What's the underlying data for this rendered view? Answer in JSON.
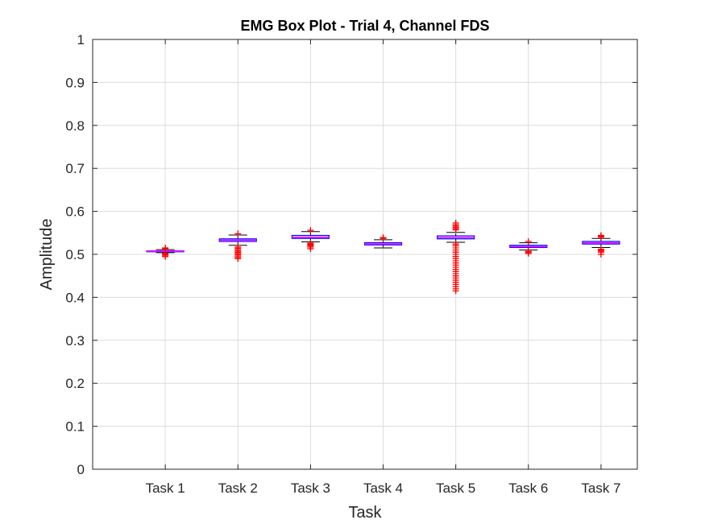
{
  "chart_data": {
    "type": "box",
    "title": "EMG Box Plot - Trial 4, Channel FDS",
    "xlabel": "Task",
    "ylabel": "Amplitude",
    "ylim": [
      0,
      1
    ],
    "yticks": [
      "0",
      "0.1",
      "0.2",
      "0.3",
      "0.4",
      "0.5",
      "0.6",
      "0.7",
      "0.8",
      "0.9",
      "1"
    ],
    "grid": true,
    "categories": [
      "Task 1",
      "Task 2",
      "Task 3",
      "Task 4",
      "Task 5",
      "Task 6",
      "Task 7"
    ],
    "boxes": [
      {
        "category": "Task 1",
        "whisker_low": 0.504,
        "q1": 0.506,
        "median": 0.507,
        "q3": 0.508,
        "whisker_high": 0.511,
        "outliers_low": [
          0.495,
          0.498,
          0.5,
          0.502
        ],
        "outliers_high": [
          0.513,
          0.515
        ]
      },
      {
        "category": "Task 2",
        "whisker_low": 0.521,
        "q1": 0.53,
        "median": 0.533,
        "q3": 0.536,
        "whisker_high": 0.545,
        "outliers_low": [
          0.49,
          0.493,
          0.496,
          0.499,
          0.502,
          0.505,
          0.508,
          0.511,
          0.514,
          0.517
        ],
        "outliers_high": [
          0.548
        ]
      },
      {
        "category": "Task 3",
        "whisker_low": 0.529,
        "q1": 0.537,
        "median": 0.54,
        "q3": 0.544,
        "whisker_high": 0.553,
        "outliers_low": [
          0.513,
          0.517,
          0.52,
          0.522,
          0.524,
          0.526
        ],
        "outliers_high": [
          0.556
        ]
      },
      {
        "category": "Task 4",
        "whisker_low": 0.515,
        "q1": 0.522,
        "median": 0.524,
        "q3": 0.527,
        "whisker_high": 0.534,
        "outliers_low": [],
        "outliers_high": [
          0.537,
          0.539
        ]
      },
      {
        "category": "Task 5",
        "whisker_low": 0.528,
        "q1": 0.536,
        "median": 0.539,
        "q3": 0.543,
        "whisker_high": 0.551,
        "outliers_low": [
          0.415,
          0.42,
          0.425,
          0.43,
          0.435,
          0.44,
          0.445,
          0.45,
          0.455,
          0.46,
          0.465,
          0.47,
          0.475,
          0.48,
          0.485,
          0.49,
          0.495,
          0.5,
          0.505,
          0.51,
          0.515,
          0.52,
          0.524
        ],
        "outliers_high": [
          0.557,
          0.56,
          0.563,
          0.566,
          0.569,
          0.573
        ]
      },
      {
        "category": "Task 6",
        "whisker_low": 0.51,
        "q1": 0.516,
        "median": 0.518,
        "q3": 0.521,
        "whisker_high": 0.527,
        "outliers_low": [
          0.502,
          0.505,
          0.507
        ],
        "outliers_high": [
          0.53
        ]
      },
      {
        "category": "Task 7",
        "whisker_low": 0.516,
        "q1": 0.524,
        "median": 0.527,
        "q3": 0.53,
        "whisker_high": 0.537,
        "outliers_low": [
          0.5,
          0.505,
          0.508,
          0.51,
          0.512
        ],
        "outliers_high": [
          0.54,
          0.542,
          0.544
        ]
      }
    ],
    "colors": {
      "box_edge": "#0000ff",
      "median": "#ff00ff",
      "whisker": "#000000",
      "outlier": "#ff0000",
      "grid": "#dcdcdc",
      "axis": "#262626"
    }
  }
}
